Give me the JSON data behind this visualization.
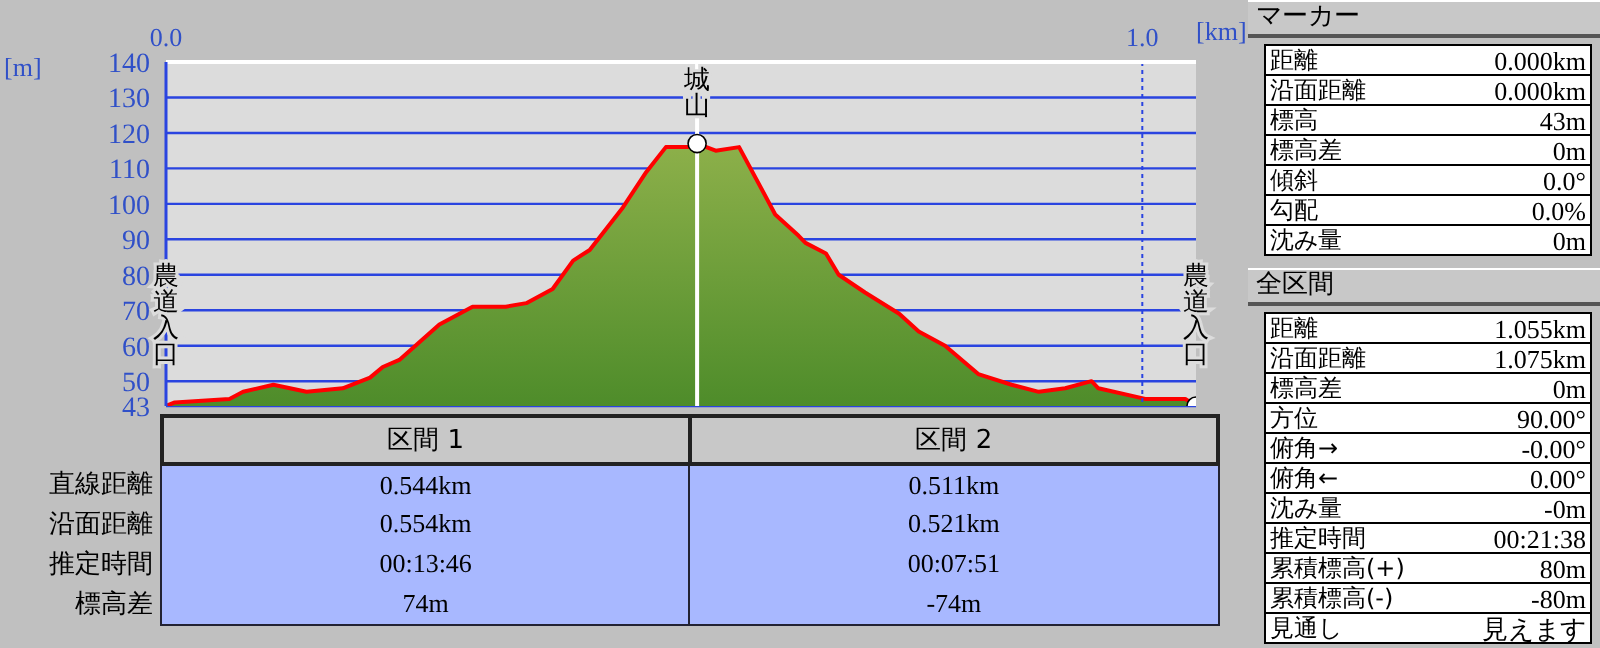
{
  "chart_data": [
    {
      "type": "area",
      "xlabel": "[km]",
      "ylabel": "[m]",
      "xlim": [
        0,
        1.055
      ],
      "xticks": [
        {
          "value": 0,
          "label": "0.0"
        },
        {
          "value": 1,
          "label": "1.0"
        }
      ],
      "ylim": [
        43,
        140
      ],
      "yticks": [
        43,
        50,
        60,
        70,
        80,
        90,
        100,
        110,
        120,
        130,
        140
      ],
      "grid": "y",
      "series": [
        {
          "type": "area",
          "color": "#ff0000",
          "x": [
            0,
            0.009,
            0.065,
            0.079,
            0.11,
            0.144,
            0.181,
            0.209,
            0.222,
            0.239,
            0.28,
            0.314,
            0.348,
            0.369,
            0.396,
            0.417,
            0.434,
            0.468,
            0.492,
            0.512,
            0.536,
            0.544,
            0.563,
            0.587,
            0.624,
            0.648,
            0.655,
            0.676,
            0.689,
            0.716,
            0.751,
            0.771,
            0.798,
            0.832,
            0.866,
            0.894,
            0.921,
            0.948,
            0.955,
            1.003,
            1.044,
            1.055
          ],
          "values": [
            43,
            44,
            45,
            47,
            49,
            47,
            48,
            51,
            54,
            56,
            66,
            71,
            71,
            72,
            76,
            84,
            87,
            99,
            109,
            116,
            116,
            117,
            115,
            116,
            97,
            91,
            89,
            86,
            80,
            75,
            69,
            64,
            60,
            52,
            49,
            47,
            48,
            50,
            48,
            45,
            45,
            43
          ]
        },
        {
          "type": "scatter",
          "color": "#ffffff",
          "marker": "circle",
          "x": [
            0.544,
            1.055
          ],
          "values": [
            117,
            43
          ]
        }
      ],
      "ref_lines": [
        {
          "axis": "x",
          "value": 0.544,
          "label": "城山",
          "color": "#ffffff"
        },
        {
          "axis": "x",
          "value": 1,
          "color": "#2a44e0",
          "line_style": "dotted"
        }
      ],
      "annotations": [
        {
          "text": "農道入口",
          "x": 0,
          "y": 43
        },
        {
          "text": "農道入口",
          "x": 1.055,
          "y": 43
        }
      ]
    },
    {
      "type": "other",
      "categories": [
        "区間 1",
        "区間 2"
      ],
      "y_categories": [
        "直線距離",
        "沿面距離",
        "推定時間",
        "標高差"
      ],
      "cell_labels": [
        [
          "0.544km",
          "0.511km"
        ],
        [
          "0.554km",
          "0.521km"
        ],
        [
          "00:13:46",
          "00:07:51"
        ],
        [
          "74m",
          "-74m"
        ]
      ]
    },
    {
      "type": "other",
      "title": "マーカー",
      "y_categories": [
        "距離",
        "沿面距離",
        "標高",
        "標高差",
        "傾斜",
        "勾配",
        "沈み量"
      ],
      "cell_labels": [
        [
          "0.000km"
        ],
        [
          "0.000km"
        ],
        [
          "43m"
        ],
        [
          "0m"
        ],
        [
          "0.0°"
        ],
        [
          "0.0%"
        ],
        [
          "0m"
        ]
      ]
    },
    {
      "type": "other",
      "title": "全区間",
      "y_categories": [
        "距離",
        "沿面距離",
        "標高差",
        "方位",
        "俯角→",
        "俯角←",
        "沈み量",
        "推定時間",
        "累積標高(+)",
        "累積標高(-)",
        "見通し"
      ],
      "cell_labels": [
        [
          "1.055km"
        ],
        [
          "1.075km"
        ],
        [
          "0m"
        ],
        [
          "90.00°"
        ],
        [
          "-0.00°"
        ],
        [
          "0.00°"
        ],
        [
          "-0m"
        ],
        [
          "00:21:38"
        ],
        [
          "80m"
        ],
        [
          "-80m"
        ],
        [
          "見えます"
        ]
      ]
    }
  ]
}
